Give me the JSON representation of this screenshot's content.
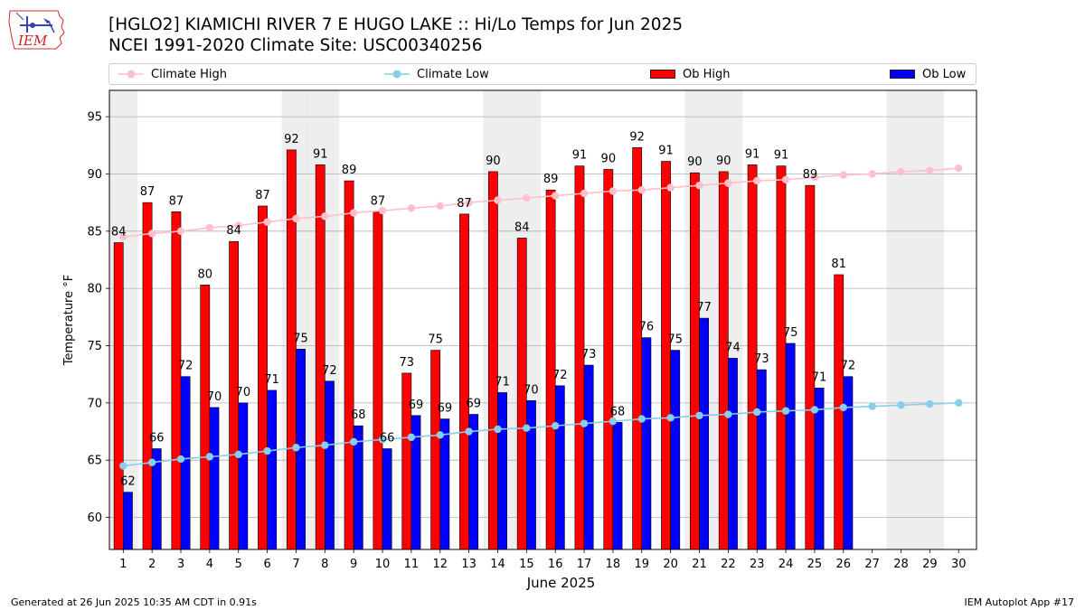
{
  "header": {
    "title_line1": "[HGLO2] KIAMICHI RIVER 7 E HUGO LAKE :: Hi/Lo Temps for Jun 2025",
    "title_line2": "NCEI 1991-2020 Climate Site: USC00340256",
    "logo_text": "IEM"
  },
  "legend": {
    "climate_high": "Climate High",
    "climate_low": "Climate Low",
    "ob_high": "Ob High",
    "ob_low": "Ob Low"
  },
  "footer": {
    "generated": "Generated at 26 Jun 2025 10:35 AM CDT in 0.91s",
    "app": "IEM Autoplot App #17"
  },
  "colors": {
    "ob_high": "#ff0000",
    "ob_low": "#0000ff",
    "climate_high": "#ffc0cb",
    "climate_low": "#87ceeb",
    "weekend_shade": "#eeeeee",
    "grid": "#b0b0b0"
  },
  "chart_data": {
    "type": "bar",
    "xlabel": "June 2025",
    "ylabel": "Temperature °F",
    "ylim": [
      57.2,
      97.3
    ],
    "yticks": [
      60,
      65,
      70,
      75,
      80,
      85,
      90,
      95
    ],
    "grid": "horizontal",
    "legend_position": "top",
    "days": [
      1,
      2,
      3,
      4,
      5,
      6,
      7,
      8,
      9,
      10,
      11,
      12,
      13,
      14,
      15,
      16,
      17,
      18,
      19,
      20,
      21,
      22,
      23,
      24,
      25,
      26,
      27,
      28,
      29,
      30
    ],
    "shaded_days": [
      1,
      7,
      8,
      14,
      15,
      21,
      22,
      28,
      29
    ],
    "series": [
      {
        "name": "Ob High",
        "kind": "bar",
        "values": [
          84,
          87,
          87,
          80,
          84,
          87,
          92,
          91,
          89,
          87,
          73,
          75,
          87,
          90,
          84,
          89,
          91,
          90,
          92,
          91,
          90,
          90,
          91,
          91,
          89,
          81,
          null,
          null,
          null,
          null
        ],
        "bar_values": [
          84,
          87.5,
          86.7,
          80.3,
          84.1,
          87.2,
          92.1,
          90.8,
          89.4,
          86.7,
          72.6,
          74.6,
          86.5,
          90.2,
          84.4,
          88.6,
          90.7,
          90.4,
          92.3,
          91.1,
          90.1,
          90.2,
          90.8,
          90.7,
          89,
          81.2,
          null,
          null,
          null,
          null
        ]
      },
      {
        "name": "Ob Low",
        "kind": "bar",
        "values": [
          62,
          66,
          72,
          70,
          70,
          71,
          75,
          72,
          68,
          66,
          69,
          69,
          69,
          71,
          70,
          72,
          73,
          68,
          76,
          75,
          77,
          74,
          73,
          75,
          71,
          72,
          null,
          null,
          null,
          null
        ],
        "bar_values": [
          62.2,
          66,
          72.3,
          69.6,
          70,
          71.1,
          74.7,
          71.9,
          68,
          66,
          68.9,
          68.6,
          69,
          70.9,
          70.2,
          71.5,
          73.3,
          68.3,
          75.7,
          74.6,
          77.4,
          73.9,
          72.9,
          75.2,
          71.3,
          72.3,
          null,
          null,
          null,
          null
        ]
      },
      {
        "name": "Climate High",
        "kind": "line",
        "values": [
          84.5,
          84.8,
          85,
          85.3,
          85.5,
          85.8,
          86.1,
          86.3,
          86.6,
          86.8,
          87,
          87.2,
          87.5,
          87.7,
          87.9,
          88.1,
          88.3,
          88.5,
          88.6,
          88.8,
          89,
          89.2,
          89.4,
          89.5,
          89.7,
          89.9,
          90,
          90.2,
          90.3,
          90.5
        ]
      },
      {
        "name": "Climate Low",
        "kind": "line",
        "values": [
          64.5,
          64.8,
          65.1,
          65.3,
          65.5,
          65.8,
          66.1,
          66.3,
          66.6,
          66.8,
          67,
          67.2,
          67.5,
          67.7,
          67.8,
          68,
          68.2,
          68.4,
          68.6,
          68.7,
          68.9,
          69,
          69.2,
          69.3,
          69.4,
          69.6,
          69.7,
          69.8,
          69.9,
          70
        ]
      }
    ]
  }
}
